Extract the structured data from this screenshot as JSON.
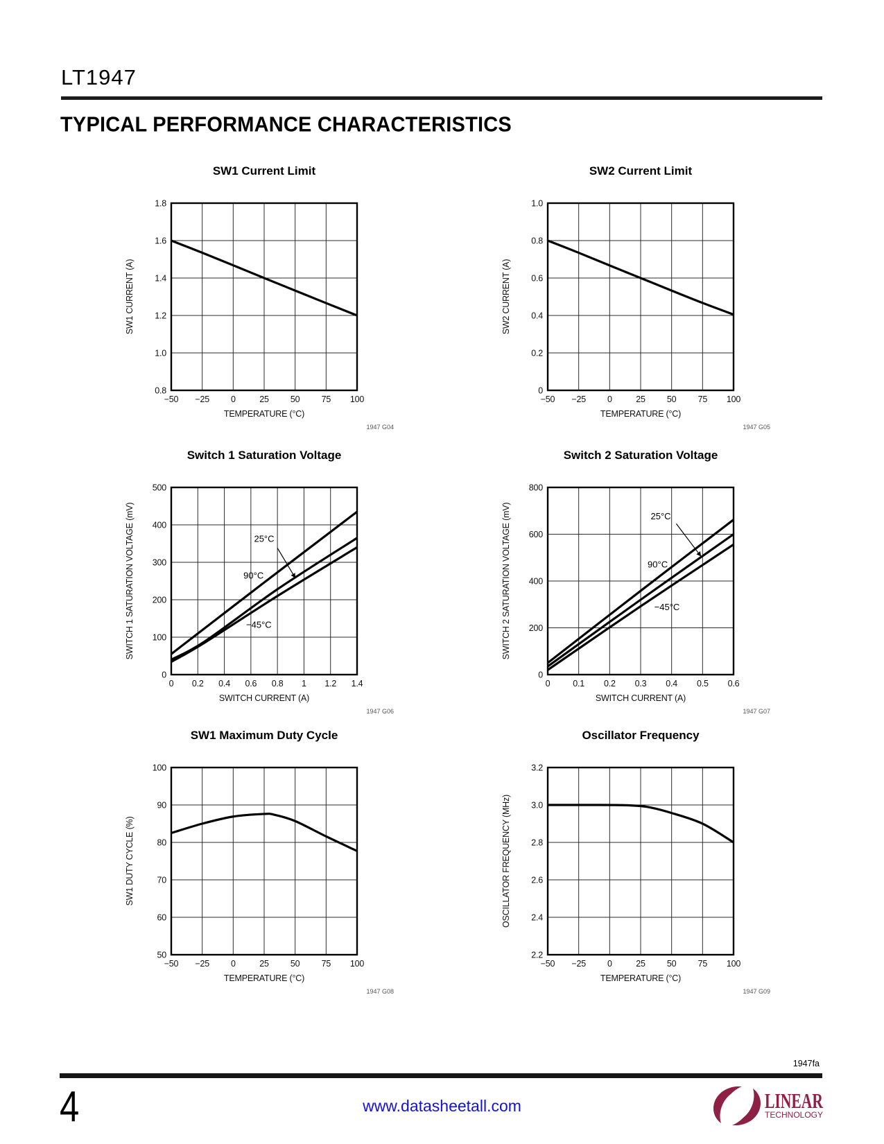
{
  "page": {
    "part_number": "LT1947",
    "section_title": "TYPICAL PERFORMANCE CHARACTERISTICS",
    "footer": {
      "doc_code": "1947fa",
      "page_number": "4",
      "link": "www.datasheetall.com",
      "link_color": "#1512d8",
      "logo_brand": "LINEAR",
      "logo_sub": "TECHNOLOGY",
      "logo_color": "#8e2044"
    }
  },
  "chart_data": [
    {
      "type": "line",
      "title": "SW1 Current Limit",
      "note": "1947 G04",
      "xlabel": "TEMPERATURE (°C)",
      "ylabel": "SW1 CURRENT (A)",
      "xlim": [
        -50,
        100
      ],
      "ylim": [
        0.8,
        1.8
      ],
      "xticks": [
        -50,
        -25,
        0,
        25,
        50,
        75,
        100
      ],
      "xtick_labels": [
        "−50",
        "−25",
        "0",
        "25",
        "50",
        "75",
        "100"
      ],
      "yticks": [
        0.8,
        1.0,
        1.2,
        1.4,
        1.6,
        1.8
      ],
      "ytick_labels": [
        "0.8",
        "1.0",
        "1.2",
        "1.4",
        "1.6",
        "1.8"
      ],
      "grid": true,
      "legend": "none",
      "series": [
        {
          "name": "SW1 current limit",
          "smooth": true,
          "points": [
            [
              -50,
              1.6
            ],
            [
              -25,
              1.535
            ],
            [
              0,
              1.468
            ],
            [
              25,
              1.4
            ],
            [
              50,
              1.333
            ],
            [
              75,
              1.266
            ],
            [
              100,
              1.2
            ]
          ]
        }
      ],
      "annotations": []
    },
    {
      "type": "line",
      "title": "SW2 Current Limit",
      "note": "1947 G05",
      "xlabel": "TEMPERATURE (°C)",
      "ylabel": "SW2 CURRENT (A)",
      "xlim": [
        -50,
        100
      ],
      "ylim": [
        0,
        1.0
      ],
      "xticks": [
        -50,
        -25,
        0,
        25,
        50,
        75,
        100
      ],
      "xtick_labels": [
        "−50",
        "−25",
        "0",
        "25",
        "50",
        "75",
        "100"
      ],
      "yticks": [
        0,
        0.2,
        0.4,
        0.6,
        0.8,
        1.0
      ],
      "ytick_labels": [
        "0",
        "0.2",
        "0.4",
        "0.6",
        "0.8",
        "1.0"
      ],
      "grid": true,
      "legend": "none",
      "series": [
        {
          "name": "SW2 current limit",
          "smooth": true,
          "points": [
            [
              -50,
              0.8
            ],
            [
              -25,
              0.735
            ],
            [
              0,
              0.667
            ],
            [
              25,
              0.6
            ],
            [
              50,
              0.533
            ],
            [
              75,
              0.467
            ],
            [
              100,
              0.405
            ]
          ]
        }
      ],
      "annotations": []
    },
    {
      "type": "line",
      "title": "Switch 1 Saturation Voltage",
      "note": "1947 G06",
      "xlabel": "SWITCH CURRENT (A)",
      "ylabel": "SWITCH 1 SATURATION VOLTAGE (mV)",
      "xlim": [
        0,
        1.4
      ],
      "ylim": [
        0,
        500
      ],
      "xticks": [
        0,
        0.2,
        0.4,
        0.6,
        0.8,
        1,
        1.2,
        1.4
      ],
      "xtick_labels": [
        "0",
        "0.2",
        "0.4",
        "0.6",
        "0.8",
        "1",
        "1.2",
        "1.4"
      ],
      "yticks": [
        0,
        100,
        200,
        300,
        400,
        500
      ],
      "ytick_labels": [
        "0",
        "100",
        "200",
        "300",
        "400",
        "500"
      ],
      "grid": true,
      "legend": "in-plot labels",
      "series": [
        {
          "name": "90°C",
          "smooth": true,
          "points": [
            [
              0,
              55
            ],
            [
              0.7,
              246
            ],
            [
              1.4,
              435
            ]
          ]
        },
        {
          "name": "25°C",
          "smooth": true,
          "points": [
            [
              0,
              40
            ],
            [
              0.25,
              88
            ],
            [
              0.8,
              228
            ],
            [
              1.4,
              365
            ]
          ]
        },
        {
          "name": "−45°C",
          "smooth": true,
          "points": [
            [
              0,
              34
            ],
            [
              0.25,
              85
            ],
            [
              0.8,
              210
            ],
            [
              1.4,
              340
            ]
          ]
        }
      ],
      "annotations": [
        {
          "text": "25°C",
          "x": 0.7,
          "y": 362,
          "arrow_from": [
            0.8,
            338
          ],
          "arrow_to": [
            0.935,
            258
          ]
        },
        {
          "text": "90°C",
          "x": 0.62,
          "y": 264
        },
        {
          "text": "−45°C",
          "x": 0.66,
          "y": 132
        }
      ]
    },
    {
      "type": "line",
      "title": "Switch 2 Saturation Voltage",
      "note": "1947 G07",
      "xlabel": "SWITCH CURRENT (A)",
      "ylabel": "SWITCH 2 SATURATION VOLTAGE (mV)",
      "xlim": [
        0,
        0.6
      ],
      "ylim": [
        0,
        800
      ],
      "xticks": [
        0,
        0.1,
        0.2,
        0.3,
        0.4,
        0.5,
        0.6
      ],
      "xtick_labels": [
        "0",
        "0.1",
        "0.2",
        "0.3",
        "0.4",
        "0.5",
        "0.6"
      ],
      "yticks": [
        0,
        200,
        400,
        600,
        800
      ],
      "ytick_labels": [
        "0",
        "200",
        "400",
        "600",
        "800"
      ],
      "grid": true,
      "legend": "in-plot labels",
      "series": [
        {
          "name": "90°C",
          "smooth": true,
          "points": [
            [
              0,
              50
            ],
            [
              0.3,
              358
            ],
            [
              0.6,
              662
            ]
          ]
        },
        {
          "name": "25°C",
          "smooth": true,
          "points": [
            [
              0,
              35
            ],
            [
              0.3,
              320
            ],
            [
              0.6,
              600
            ]
          ]
        },
        {
          "name": "−45°C",
          "smooth": true,
          "points": [
            [
              0,
              20
            ],
            [
              0.3,
              292
            ],
            [
              0.6,
              556
            ]
          ]
        }
      ],
      "annotations": [
        {
          "text": "25°C",
          "x": 0.365,
          "y": 675,
          "arrow_from": [
            0.415,
            645
          ],
          "arrow_to": [
            0.495,
            505
          ]
        },
        {
          "text": "90°C",
          "x": 0.355,
          "y": 470
        },
        {
          "text": "−45°C",
          "x": 0.385,
          "y": 288
        }
      ]
    },
    {
      "type": "line",
      "title": "SW1 Maximum Duty Cycle",
      "note": "1947 G08",
      "xlabel": "TEMPERATURE (°C)",
      "ylabel": "SW1 DUTY CYCLE (%)",
      "xlim": [
        -50,
        100
      ],
      "ylim": [
        50,
        100
      ],
      "xticks": [
        -50,
        -25,
        0,
        25,
        50,
        75,
        100
      ],
      "xtick_labels": [
        "−50",
        "−25",
        "0",
        "25",
        "50",
        "75",
        "100"
      ],
      "yticks": [
        50,
        60,
        70,
        80,
        90,
        100
      ],
      "ytick_labels": [
        "50",
        "60",
        "70",
        "80",
        "90",
        "100"
      ],
      "grid": true,
      "legend": "none",
      "series": [
        {
          "name": "SW1 maximum duty cycle",
          "smooth": true,
          "points": [
            [
              -50,
              82.5
            ],
            [
              -25,
              85
            ],
            [
              0,
              86.9
            ],
            [
              25,
              87.6
            ],
            [
              33,
              87.4
            ],
            [
              50,
              85.7
            ],
            [
              75,
              81.6
            ],
            [
              100,
              77.7
            ]
          ]
        }
      ],
      "annotations": []
    },
    {
      "type": "line",
      "title": "Oscillator Frequency",
      "note": "1947 G09",
      "xlabel": "TEMPERATURE (°C)",
      "ylabel": "OSCILLATOR FREQUENCY (MHz)",
      "xlim": [
        -50,
        100
      ],
      "ylim": [
        2.2,
        3.2
      ],
      "xticks": [
        -50,
        -25,
        0,
        25,
        50,
        75,
        100
      ],
      "xtick_labels": [
        "−50",
        "−25",
        "0",
        "25",
        "50",
        "75",
        "100"
      ],
      "yticks": [
        2.2,
        2.4,
        2.6,
        2.8,
        3.0,
        3.2
      ],
      "ytick_labels": [
        "2.2",
        "2.4",
        "2.6",
        "2.8",
        "3.0",
        "3.2"
      ],
      "grid": true,
      "legend": "none",
      "series": [
        {
          "name": "oscillator frequency",
          "smooth": true,
          "points": [
            [
              -50,
              3.0
            ],
            [
              -20,
              3.0
            ],
            [
              10,
              2.999
            ],
            [
              30,
              2.99
            ],
            [
              50,
              2.957
            ],
            [
              75,
              2.9
            ],
            [
              100,
              2.8
            ]
          ]
        }
      ],
      "annotations": []
    }
  ]
}
